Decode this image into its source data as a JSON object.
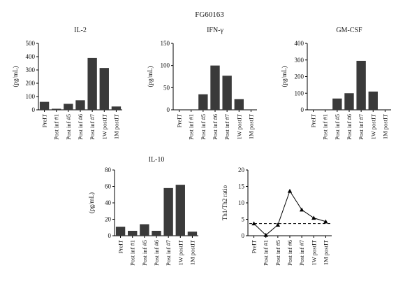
{
  "figure_title": "FG60163",
  "categories": [
    "PreIT",
    "Post inf #1",
    "Post inf #5",
    "Post inf #6",
    "Post inf #7",
    "1W postIT",
    "1M postIT"
  ],
  "colors": {
    "bar_fill": "#3a3a3a",
    "axis": "#000000",
    "line": "#000000",
    "dashed": "#000000"
  },
  "chart_data": [
    {
      "id": "il2",
      "type": "bar",
      "title": "IL-2",
      "ylabel": "(pg/mL)",
      "ylim": [
        0,
        500
      ],
      "yticks": [
        0,
        100,
        200,
        300,
        400,
        500
      ],
      "categories": [
        "PreIT",
        "Post inf #1",
        "Post inf #5",
        "Post inf #6",
        "Post inf #7",
        "1W postIT",
        "1M postIT"
      ],
      "values": [
        60,
        8,
        45,
        72,
        390,
        315,
        25
      ]
    },
    {
      "id": "ifng",
      "type": "bar",
      "title": "IFN-γ",
      "ylabel": "(pg/mL)",
      "ylim": [
        0,
        150
      ],
      "yticks": [
        0,
        50,
        100,
        150
      ],
      "categories": [
        "PreIT",
        "Post inf #1",
        "Post inf #5",
        "Post inf #6",
        "Post inf #7",
        "1W postIT",
        "1M postIT"
      ],
      "values": [
        0,
        0,
        35,
        100,
        77,
        24,
        0
      ]
    },
    {
      "id": "gmcsf",
      "type": "bar",
      "title": "GM-CSF",
      "ylabel": "(pg/mL)",
      "ylim": [
        0,
        400
      ],
      "yticks": [
        0,
        100,
        200,
        300,
        400
      ],
      "categories": [
        "PreIT",
        "Post inf #1",
        "Post inf #5",
        "Post inf #6",
        "Post inf #7",
        "1W postIT",
        "1M postIT"
      ],
      "values": [
        0,
        0,
        68,
        100,
        295,
        110,
        0
      ]
    },
    {
      "id": "il10",
      "type": "bar",
      "title": "IL-10",
      "ylabel": "(pg/mL)",
      "ylim": [
        0,
        80
      ],
      "yticks": [
        0,
        20,
        40,
        60,
        80
      ],
      "categories": [
        "PreIT",
        "Post inf #1",
        "Post inf #5",
        "Post inf #6",
        "Post inf #7",
        "1W postIT",
        "1M postIT"
      ],
      "values": [
        11,
        6,
        14,
        6,
        58,
        62,
        5
      ]
    },
    {
      "id": "ratio",
      "type": "line",
      "title": "",
      "ylabel": "Th1/Th2 ratio",
      "ylim": [
        0,
        20
      ],
      "yticks": [
        0,
        5,
        10,
        15,
        20
      ],
      "categories": [
        "PreIT",
        "Post inf #1",
        "Post inf #5",
        "Post inf #6",
        "Post inf #7",
        "1W postIT",
        "1M postIT"
      ],
      "values": [
        3.7,
        0.2,
        3.3,
        13.6,
        7.9,
        5.4,
        4.3
      ],
      "reference_line": 3.7
    }
  ]
}
